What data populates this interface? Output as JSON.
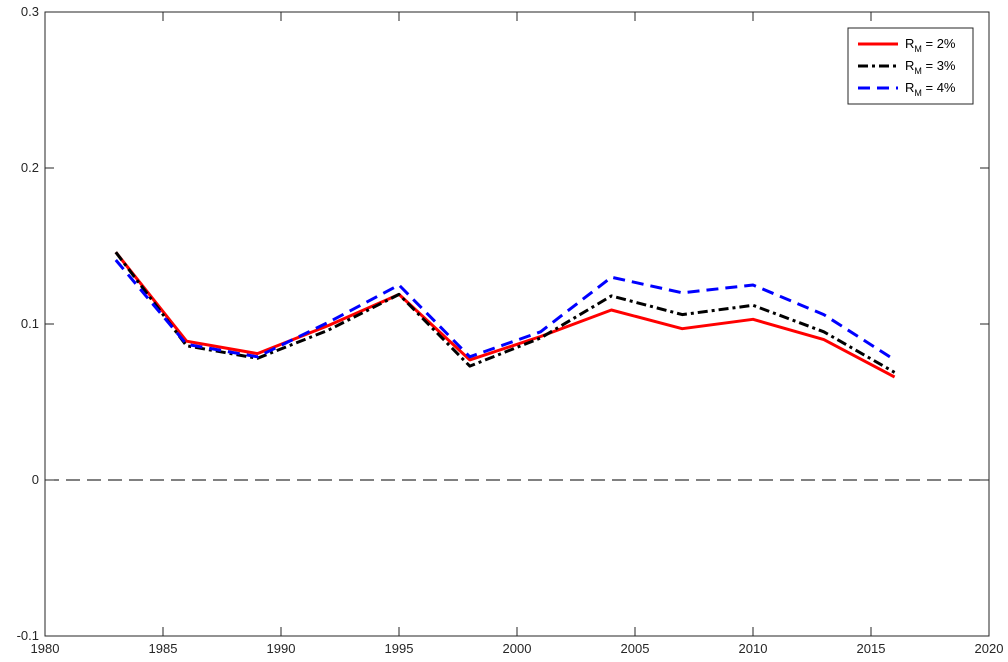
{
  "chart_data": {
    "type": "line",
    "title": "",
    "xlabel": "",
    "ylabel": "",
    "xlim": [
      1980,
      2020
    ],
    "ylim": [
      -0.1,
      0.3
    ],
    "xticks": [
      1980,
      1985,
      1990,
      1995,
      2000,
      2005,
      2010,
      2015,
      2020
    ],
    "yticks": [
      -0.1,
      0,
      0.1,
      0.2,
      0.3
    ],
    "xtick_labels": [
      "1980",
      "1985",
      "1990",
      "1995",
      "2000",
      "2005",
      "2010",
      "2015",
      "2020"
    ],
    "ytick_labels": [
      "-0.1",
      "0",
      "0.1",
      "0.2",
      "0.3"
    ],
    "x": [
      1983,
      1986,
      1989,
      1992,
      1995,
      1998,
      2001,
      2004,
      2007,
      2010,
      2013,
      2016
    ],
    "series": [
      {
        "name_main": "R",
        "name_sub": "M",
        "name_rest": " = 2%",
        "color": "#ff0000",
        "style": "solid",
        "values": [
          0.146,
          0.089,
          0.081,
          0.099,
          0.119,
          0.077,
          0.092,
          0.109,
          0.097,
          0.103,
          0.09,
          0.066
        ]
      },
      {
        "name_main": "R",
        "name_sub": "M",
        "name_rest": " = 3%",
        "color": "#000000",
        "style": "dashdot",
        "values": [
          0.146,
          0.086,
          0.078,
          0.096,
          0.119,
          0.073,
          0.091,
          0.118,
          0.106,
          0.112,
          0.095,
          0.069
        ]
      },
      {
        "name_main": "R",
        "name_sub": "M",
        "name_rest": " = 4%",
        "color": "#0000ff",
        "style": "dashed",
        "values": [
          0.141,
          0.087,
          0.079,
          0.101,
          0.125,
          0.079,
          0.095,
          0.13,
          0.12,
          0.125,
          0.106,
          0.077
        ]
      }
    ],
    "reference_line": {
      "y": 0,
      "color": "#000000",
      "style": "dashed"
    },
    "legend_position": "top-right",
    "grid": false
  }
}
